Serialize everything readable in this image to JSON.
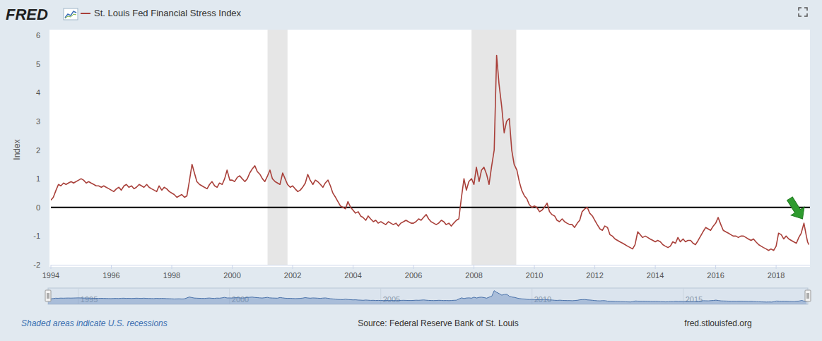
{
  "chart_data": {
    "type": "line",
    "brand": "FRED",
    "y_label": "Index",
    "note": "Shaded areas indicate U.S. recessions",
    "source": "Source: Federal Reserve Bank of St. Louis",
    "url": "fred.stlouisfed.org",
    "legend": "top-left",
    "grid": false,
    "xlim": [
      1994,
      2019.12
    ],
    "xticks": [
      1994,
      1996,
      1998,
      2000,
      2002,
      2004,
      2006,
      2008,
      2010,
      2012,
      2014,
      2016,
      2018
    ],
    "ylim": [
      -2,
      6
    ],
    "yticks": [
      -2,
      -1,
      0,
      1,
      2,
      3,
      4,
      5,
      6
    ],
    "horizontal_line": 0,
    "recessions": [
      [
        2001.17,
        2001.83
      ],
      [
        2007.92,
        2009.4
      ]
    ],
    "navigator_ticks": [
      1995,
      2000,
      2005,
      2010,
      2015
    ],
    "x": [
      1994,
      1994.08,
      1994.17,
      1994.25,
      1994.33,
      1994.42,
      1994.5,
      1994.58,
      1994.67,
      1994.75,
      1994.83,
      1994.92,
      1995,
      1995.08,
      1995.17,
      1995.25,
      1995.33,
      1995.42,
      1995.5,
      1995.58,
      1995.67,
      1995.75,
      1995.83,
      1995.92,
      1996,
      1996.08,
      1996.17,
      1996.25,
      1996.33,
      1996.42,
      1996.5,
      1996.58,
      1996.67,
      1996.75,
      1996.83,
      1996.92,
      1997,
      1997.08,
      1997.17,
      1997.25,
      1997.33,
      1997.42,
      1997.5,
      1997.58,
      1997.67,
      1997.75,
      1997.83,
      1997.92,
      1998,
      1998.08,
      1998.17,
      1998.25,
      1998.33,
      1998.42,
      1998.5,
      1998.58,
      1998.67,
      1998.75,
      1998.83,
      1998.92,
      1999,
      1999.08,
      1999.17,
      1999.25,
      1999.33,
      1999.42,
      1999.5,
      1999.58,
      1999.67,
      1999.75,
      1999.83,
      1999.92,
      2000,
      2000.08,
      2000.17,
      2000.25,
      2000.33,
      2000.42,
      2000.5,
      2000.58,
      2000.67,
      2000.75,
      2000.83,
      2000.92,
      2001,
      2001.08,
      2001.17,
      2001.25,
      2001.33,
      2001.42,
      2001.5,
      2001.58,
      2001.67,
      2001.75,
      2001.83,
      2001.92,
      2002,
      2002.08,
      2002.17,
      2002.25,
      2002.33,
      2002.42,
      2002.5,
      2002.58,
      2002.67,
      2002.75,
      2002.83,
      2002.92,
      2003,
      2003.08,
      2003.17,
      2003.25,
      2003.33,
      2003.42,
      2003.5,
      2003.58,
      2003.67,
      2003.75,
      2003.83,
      2003.92,
      2004,
      2004.08,
      2004.17,
      2004.25,
      2004.33,
      2004.42,
      2004.5,
      2004.58,
      2004.67,
      2004.75,
      2004.83,
      2004.92,
      2005,
      2005.08,
      2005.17,
      2005.25,
      2005.33,
      2005.42,
      2005.5,
      2005.58,
      2005.67,
      2005.75,
      2005.83,
      2005.92,
      2006,
      2006.08,
      2006.17,
      2006.25,
      2006.33,
      2006.42,
      2006.5,
      2006.58,
      2006.67,
      2006.75,
      2006.83,
      2006.92,
      2007,
      2007.08,
      2007.17,
      2007.25,
      2007.33,
      2007.42,
      2007.5,
      2007.58,
      2007.67,
      2007.75,
      2007.83,
      2007.92,
      2008,
      2008.08,
      2008.17,
      2008.25,
      2008.33,
      2008.42,
      2008.5,
      2008.58,
      2008.67,
      2008.75,
      2008.83,
      2008.92,
      2009,
      2009.08,
      2009.17,
      2009.25,
      2009.33,
      2009.42,
      2009.5,
      2009.58,
      2009.67,
      2009.75,
      2009.83,
      2009.92,
      2010,
      2010.08,
      2010.17,
      2010.25,
      2010.33,
      2010.42,
      2010.5,
      2010.58,
      2010.67,
      2010.75,
      2010.83,
      2010.92,
      2011,
      2011.08,
      2011.17,
      2011.25,
      2011.33,
      2011.42,
      2011.5,
      2011.58,
      2011.67,
      2011.75,
      2011.83,
      2011.92,
      2012,
      2012.08,
      2012.17,
      2012.25,
      2012.33,
      2012.42,
      2012.5,
      2012.58,
      2012.67,
      2012.75,
      2012.83,
      2012.92,
      2013,
      2013.08,
      2013.17,
      2013.25,
      2013.33,
      2013.42,
      2013.5,
      2013.58,
      2013.67,
      2013.75,
      2013.83,
      2013.92,
      2014,
      2014.08,
      2014.17,
      2014.25,
      2014.33,
      2014.42,
      2014.5,
      2014.58,
      2014.67,
      2014.75,
      2014.83,
      2014.92,
      2015,
      2015.08,
      2015.17,
      2015.25,
      2015.33,
      2015.42,
      2015.5,
      2015.58,
      2015.67,
      2015.75,
      2015.83,
      2015.92,
      2016,
      2016.08,
      2016.17,
      2016.25,
      2016.33,
      2016.42,
      2016.5,
      2016.58,
      2016.67,
      2016.75,
      2016.83,
      2016.92,
      2017,
      2017.08,
      2017.17,
      2017.25,
      2017.33,
      2017.42,
      2017.5,
      2017.58,
      2017.67,
      2017.75,
      2017.83,
      2017.92,
      2018,
      2018.08,
      2018.17,
      2018.25,
      2018.33,
      2018.42,
      2018.5,
      2018.58,
      2018.67,
      2018.75,
      2018.83,
      2018.92,
      2019,
      2019.04,
      2019.08
    ],
    "series": [
      {
        "name": "St. Louis Fed Financial Stress Index",
        "color": "#a9403a",
        "values": [
          0.25,
          0.35,
          0.6,
          0.8,
          0.75,
          0.85,
          0.8,
          0.85,
          0.9,
          0.85,
          0.9,
          0.95,
          1.0,
          0.95,
          0.85,
          0.9,
          0.85,
          0.8,
          0.75,
          0.75,
          0.7,
          0.75,
          0.7,
          0.65,
          0.6,
          0.55,
          0.65,
          0.7,
          0.6,
          0.75,
          0.8,
          0.7,
          0.75,
          0.65,
          0.7,
          0.8,
          0.75,
          0.7,
          0.8,
          0.7,
          0.65,
          0.6,
          0.55,
          0.75,
          0.6,
          0.7,
          0.65,
          0.55,
          0.5,
          0.45,
          0.35,
          0.4,
          0.45,
          0.35,
          0.4,
          0.9,
          1.5,
          1.2,
          0.9,
          0.8,
          0.75,
          0.7,
          0.65,
          0.8,
          0.9,
          0.75,
          0.7,
          0.85,
          0.8,
          1.0,
          1.3,
          0.95,
          0.95,
          0.9,
          1.05,
          1.1,
          1.0,
          0.9,
          1.0,
          1.2,
          1.35,
          1.45,
          1.25,
          1.15,
          1.0,
          0.9,
          1.1,
          1.3,
          1.0,
          0.9,
          0.85,
          0.8,
          1.2,
          1.0,
          0.8,
          0.7,
          0.75,
          0.65,
          0.55,
          0.6,
          0.7,
          0.85,
          1.15,
          0.95,
          0.8,
          0.95,
          0.9,
          0.8,
          0.7,
          0.85,
          0.95,
          0.75,
          0.5,
          0.35,
          0.2,
          0.05,
          0.0,
          -0.05,
          0.2,
          0.0,
          -0.1,
          -0.2,
          -0.15,
          -0.3,
          -0.35,
          -0.45,
          -0.3,
          -0.4,
          -0.5,
          -0.45,
          -0.55,
          -0.5,
          -0.55,
          -0.6,
          -0.5,
          -0.55,
          -0.6,
          -0.55,
          -0.65,
          -0.55,
          -0.5,
          -0.45,
          -0.5,
          -0.55,
          -0.55,
          -0.5,
          -0.4,
          -0.45,
          -0.35,
          -0.25,
          -0.4,
          -0.5,
          -0.55,
          -0.6,
          -0.55,
          -0.45,
          -0.5,
          -0.6,
          -0.55,
          -0.65,
          -0.55,
          -0.45,
          -0.4,
          0.3,
          1.0,
          0.6,
          0.9,
          1.0,
          0.8,
          1.4,
          0.9,
          1.3,
          1.4,
          1.15,
          0.8,
          1.4,
          2.0,
          5.3,
          4.3,
          3.5,
          2.6,
          3.0,
          3.1,
          2.0,
          1.5,
          1.3,
          0.9,
          0.6,
          0.4,
          0.3,
          0.1,
          0.0,
          0.05,
          0.0,
          -0.15,
          -0.1,
          0.0,
          0.15,
          -0.15,
          -0.25,
          -0.3,
          -0.45,
          -0.5,
          -0.4,
          -0.5,
          -0.55,
          -0.6,
          -0.6,
          -0.7,
          -0.55,
          -0.45,
          -0.15,
          -0.05,
          0.0,
          -0.2,
          -0.3,
          -0.45,
          -0.6,
          -0.75,
          -0.8,
          -0.65,
          -0.7,
          -0.95,
          -1.0,
          -1.1,
          -1.15,
          -1.2,
          -1.25,
          -1.3,
          -1.35,
          -1.4,
          -1.45,
          -1.3,
          -0.85,
          -0.95,
          -1.05,
          -1.0,
          -1.05,
          -1.1,
          -1.15,
          -1.2,
          -1.15,
          -1.2,
          -1.3,
          -1.35,
          -1.4,
          -1.35,
          -1.2,
          -1.25,
          -1.05,
          -1.2,
          -1.1,
          -1.2,
          -1.15,
          -1.15,
          -1.25,
          -1.3,
          -1.15,
          -1.0,
          -0.85,
          -0.7,
          -0.75,
          -0.8,
          -0.65,
          -0.55,
          -0.35,
          -0.6,
          -0.8,
          -0.85,
          -0.9,
          -0.95,
          -1.0,
          -1.0,
          -1.05,
          -1.0,
          -1.0,
          -1.05,
          -1.1,
          -1.15,
          -1.1,
          -1.2,
          -1.3,
          -1.35,
          -1.4,
          -1.45,
          -1.5,
          -1.45,
          -1.5,
          -1.35,
          -0.9,
          -0.95,
          -1.1,
          -1.0,
          -1.1,
          -1.15,
          -1.2,
          -1.25,
          -1.05,
          -0.9,
          -0.55,
          -1.0,
          -1.2,
          -1.3
        ]
      }
    ]
  }
}
